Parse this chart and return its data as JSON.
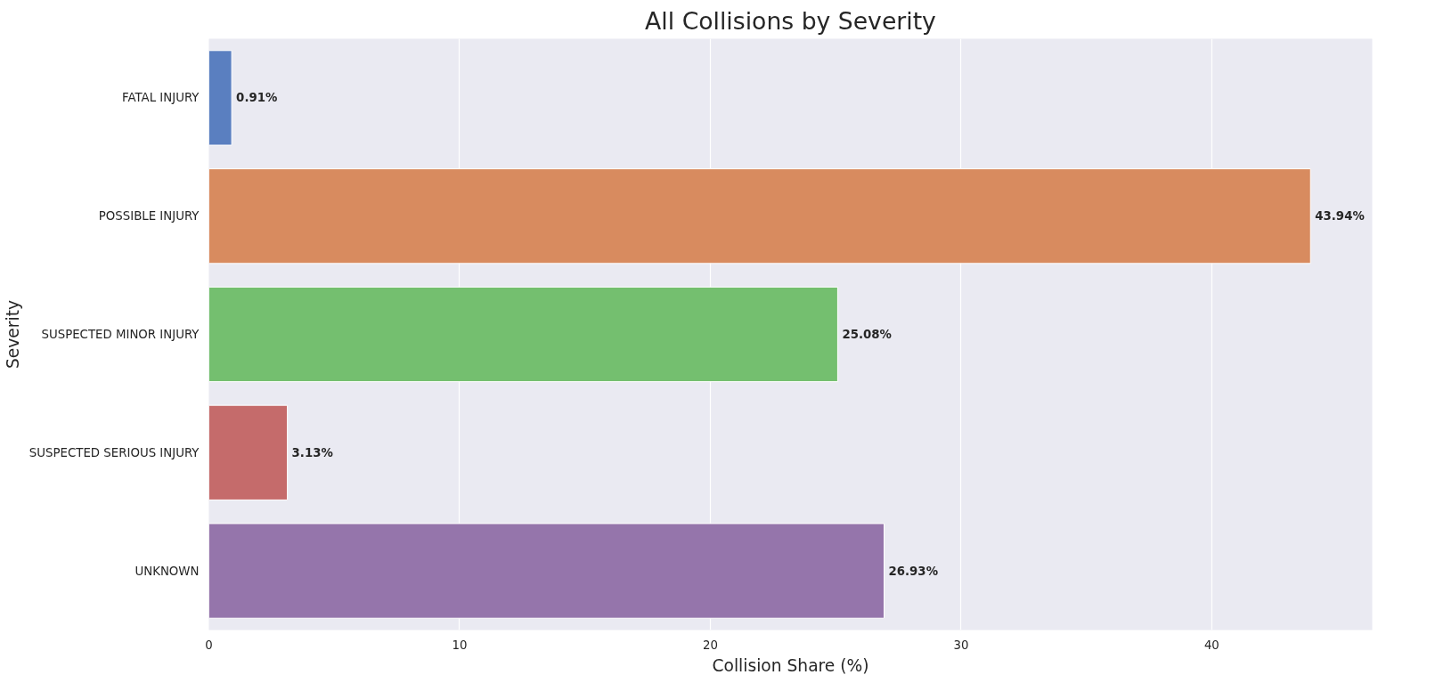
{
  "chart_data": {
    "type": "bar",
    "orientation": "horizontal",
    "title": "All Collisions by Severity",
    "xlabel": "Collision Share (%)",
    "ylabel": "Severity",
    "categories": [
      "FATAL INJURY",
      "POSSIBLE INJURY",
      "SUSPECTED MINOR INJURY",
      "SUSPECTED SERIOUS INJURY",
      "UNKNOWN"
    ],
    "values": [
      0.91,
      43.94,
      25.08,
      3.13,
      26.93
    ],
    "value_labels": [
      "0.91%",
      "43.94%",
      "25.08%",
      "3.13%",
      "26.93%"
    ],
    "colors": [
      "#5a7fc0",
      "#d88b5f",
      "#74bf6f",
      "#c56b6b",
      "#9575ab"
    ],
    "xlim": [
      0,
      46.4
    ],
    "xticks": [
      0,
      10,
      20,
      30,
      40
    ],
    "grid": "x"
  }
}
